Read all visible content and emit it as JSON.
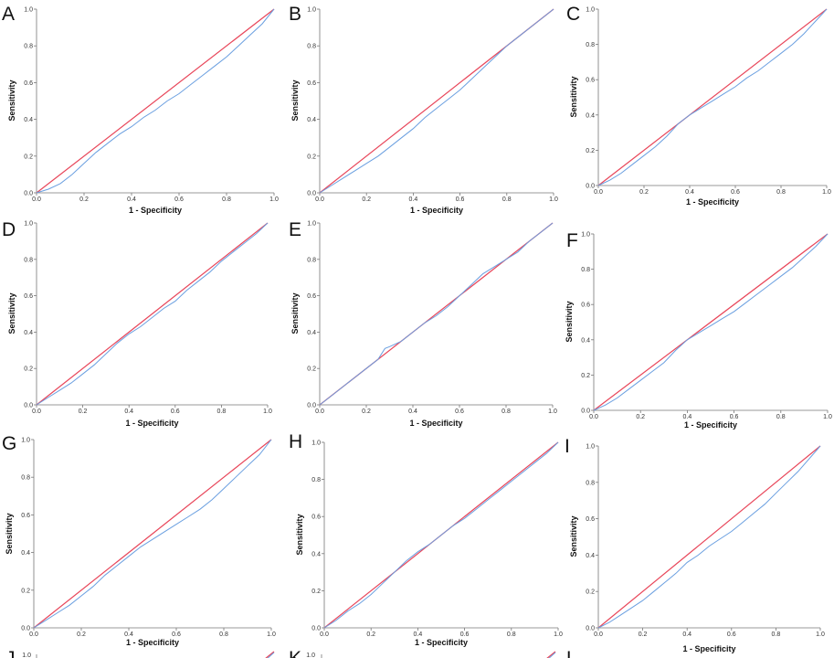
{
  "colors": {
    "reference_line": "#e8465a",
    "roc_curve": "#6a9fe0",
    "axis": "#777777"
  },
  "chart_data": [
    {
      "type": "line",
      "panel": "A",
      "xlabel": "1 - Specificity",
      "ylabel": "Sensitivity",
      "xlim": [
        0,
        1
      ],
      "ylim": [
        0,
        1
      ],
      "xticks": [
        "0.0",
        "0.2",
        "0.4",
        "0.6",
        "0.8",
        "1.0"
      ],
      "yticks": [
        "0.0",
        "0.2",
        "0.4",
        "0.6",
        "0.8",
        "1.0"
      ],
      "reference": [
        [
          0,
          0
        ],
        [
          1,
          1
        ]
      ],
      "roc": [
        [
          0,
          0
        ],
        [
          0.05,
          0.02
        ],
        [
          0.1,
          0.05
        ],
        [
          0.15,
          0.1
        ],
        [
          0.2,
          0.16
        ],
        [
          0.25,
          0.22
        ],
        [
          0.3,
          0.27
        ],
        [
          0.35,
          0.32
        ],
        [
          0.4,
          0.36
        ],
        [
          0.45,
          0.41
        ],
        [
          0.5,
          0.45
        ],
        [
          0.55,
          0.5
        ],
        [
          0.6,
          0.54
        ],
        [
          0.65,
          0.59
        ],
        [
          0.7,
          0.64
        ],
        [
          0.75,
          0.69
        ],
        [
          0.8,
          0.74
        ],
        [
          0.85,
          0.8
        ],
        [
          0.9,
          0.86
        ],
        [
          0.95,
          0.92
        ],
        [
          1,
          1
        ]
      ]
    },
    {
      "type": "line",
      "panel": "B",
      "xlabel": "1 - Specificity",
      "ylabel": "Sensitivity",
      "xlim": [
        0,
        1
      ],
      "ylim": [
        0,
        1
      ],
      "xticks": [
        "0.0",
        "0.2",
        "0.4",
        "0.6",
        "0.8",
        "1.0"
      ],
      "yticks": [
        "0.0",
        "0.2",
        "0.4",
        "0.6",
        "0.8",
        "1.0"
      ],
      "reference": [
        [
          0,
          0
        ],
        [
          1,
          1
        ]
      ],
      "roc": [
        [
          0,
          0
        ],
        [
          0.05,
          0.04
        ],
        [
          0.1,
          0.08
        ],
        [
          0.15,
          0.12
        ],
        [
          0.2,
          0.16
        ],
        [
          0.25,
          0.2
        ],
        [
          0.3,
          0.25
        ],
        [
          0.35,
          0.3
        ],
        [
          0.4,
          0.35
        ],
        [
          0.45,
          0.41
        ],
        [
          0.5,
          0.46
        ],
        [
          0.55,
          0.51
        ],
        [
          0.6,
          0.56
        ],
        [
          0.65,
          0.62
        ],
        [
          0.7,
          0.68
        ],
        [
          0.75,
          0.74
        ],
        [
          0.8,
          0.8
        ],
        [
          0.85,
          0.85
        ],
        [
          0.9,
          0.9
        ],
        [
          0.95,
          0.95
        ],
        [
          1,
          1
        ]
      ]
    },
    {
      "type": "line",
      "panel": "C",
      "xlabel": "1 - Specificity",
      "ylabel": "Sensitivity",
      "xlim": [
        0,
        1
      ],
      "ylim": [
        0,
        1
      ],
      "xticks": [
        "0.0",
        "0.2",
        "0.4",
        "0.6",
        "0.8",
        "1.0"
      ],
      "yticks": [
        "0.0",
        "0.2",
        "0.4",
        "0.6",
        "0.8",
        "1.0"
      ],
      "reference": [
        [
          0,
          0
        ],
        [
          1,
          1
        ]
      ],
      "roc": [
        [
          0,
          0
        ],
        [
          0.05,
          0.03
        ],
        [
          0.1,
          0.07
        ],
        [
          0.15,
          0.12
        ],
        [
          0.2,
          0.17
        ],
        [
          0.25,
          0.22
        ],
        [
          0.3,
          0.28
        ],
        [
          0.35,
          0.35
        ],
        [
          0.4,
          0.4
        ],
        [
          0.45,
          0.44
        ],
        [
          0.5,
          0.48
        ],
        [
          0.55,
          0.52
        ],
        [
          0.6,
          0.56
        ],
        [
          0.65,
          0.61
        ],
        [
          0.7,
          0.65
        ],
        [
          0.75,
          0.7
        ],
        [
          0.8,
          0.75
        ],
        [
          0.85,
          0.8
        ],
        [
          0.9,
          0.86
        ],
        [
          0.95,
          0.93
        ],
        [
          1,
          1
        ]
      ]
    },
    {
      "type": "line",
      "panel": "D",
      "xlabel": "1 - Specificity",
      "ylabel": "Sensitivity",
      "xlim": [
        0,
        1
      ],
      "ylim": [
        0,
        1
      ],
      "xticks": [
        "0.0",
        "0.2",
        "0.4",
        "0.6",
        "0.8",
        "1.0"
      ],
      "yticks": [
        "0.0",
        "0.2",
        "0.4",
        "0.6",
        "0.8",
        "1.0"
      ],
      "reference": [
        [
          0,
          0
        ],
        [
          1,
          1
        ]
      ],
      "roc": [
        [
          0,
          0
        ],
        [
          0.05,
          0.04
        ],
        [
          0.1,
          0.08
        ],
        [
          0.15,
          0.12
        ],
        [
          0.2,
          0.17
        ],
        [
          0.25,
          0.22
        ],
        [
          0.3,
          0.28
        ],
        [
          0.35,
          0.34
        ],
        [
          0.4,
          0.39
        ],
        [
          0.45,
          0.43
        ],
        [
          0.5,
          0.48
        ],
        [
          0.55,
          0.53
        ],
        [
          0.6,
          0.57
        ],
        [
          0.65,
          0.63
        ],
        [
          0.7,
          0.68
        ],
        [
          0.75,
          0.73
        ],
        [
          0.8,
          0.79
        ],
        [
          0.85,
          0.84
        ],
        [
          0.9,
          0.89
        ],
        [
          0.95,
          0.94
        ],
        [
          1,
          1
        ]
      ]
    },
    {
      "type": "line",
      "panel": "E",
      "xlabel": "1 - Specificity",
      "ylabel": "Sensitivity",
      "xlim": [
        0,
        1
      ],
      "ylim": [
        0,
        1
      ],
      "xticks": [
        "0.0",
        "0.2",
        "0.4",
        "0.6",
        "0.8",
        "1.0"
      ],
      "yticks": [
        "0.0",
        "0.2",
        "0.4",
        "0.6",
        "0.8",
        "1.0"
      ],
      "reference": [
        [
          0,
          0
        ],
        [
          1,
          1
        ]
      ],
      "roc": [
        [
          0,
          0
        ],
        [
          0.05,
          0.05
        ],
        [
          0.1,
          0.1
        ],
        [
          0.15,
          0.15
        ],
        [
          0.2,
          0.2
        ],
        [
          0.25,
          0.25
        ],
        [
          0.28,
          0.31
        ],
        [
          0.3,
          0.32
        ],
        [
          0.35,
          0.35
        ],
        [
          0.4,
          0.4
        ],
        [
          0.45,
          0.45
        ],
        [
          0.5,
          0.49
        ],
        [
          0.55,
          0.54
        ],
        [
          0.6,
          0.6
        ],
        [
          0.65,
          0.66
        ],
        [
          0.7,
          0.72
        ],
        [
          0.75,
          0.76
        ],
        [
          0.8,
          0.8
        ],
        [
          0.85,
          0.84
        ],
        [
          0.9,
          0.9
        ],
        [
          0.95,
          0.95
        ],
        [
          1,
          1
        ]
      ]
    },
    {
      "type": "line",
      "panel": "F",
      "xlabel": "1 - Specificity",
      "ylabel": "Sensitivity",
      "xlim": [
        0,
        1
      ],
      "ylim": [
        0,
        1
      ],
      "xticks": [
        "0.0",
        "0.2",
        "0.4",
        "0.6",
        "0.8",
        "1.0"
      ],
      "yticks": [
        "0.0",
        "0.2",
        "0.4",
        "0.6",
        "0.8",
        "1.0"
      ],
      "reference": [
        [
          0,
          0
        ],
        [
          1,
          1
        ]
      ],
      "roc": [
        [
          0,
          0
        ],
        [
          0.05,
          0.03
        ],
        [
          0.1,
          0.07
        ],
        [
          0.15,
          0.12
        ],
        [
          0.2,
          0.17
        ],
        [
          0.25,
          0.22
        ],
        [
          0.3,
          0.27
        ],
        [
          0.35,
          0.34
        ],
        [
          0.4,
          0.4
        ],
        [
          0.45,
          0.44
        ],
        [
          0.5,
          0.48
        ],
        [
          0.55,
          0.52
        ],
        [
          0.6,
          0.56
        ],
        [
          0.65,
          0.61
        ],
        [
          0.7,
          0.66
        ],
        [
          0.75,
          0.71
        ],
        [
          0.8,
          0.76
        ],
        [
          0.85,
          0.81
        ],
        [
          0.9,
          0.87
        ],
        [
          0.95,
          0.93
        ],
        [
          1,
          1
        ]
      ]
    },
    {
      "type": "line",
      "panel": "G",
      "xlabel": "1 - Specificity",
      "ylabel": "Sensitivity",
      "xlim": [
        0,
        1
      ],
      "ylim": [
        0,
        1
      ],
      "xticks": [
        "0.0",
        "0.2",
        "0.4",
        "0.6",
        "0.8",
        "1.0"
      ],
      "yticks": [
        "0.0",
        "0.2",
        "0.4",
        "0.6",
        "0.8",
        "1.0"
      ],
      "reference": [
        [
          0,
          0
        ],
        [
          1,
          1
        ]
      ],
      "roc": [
        [
          0,
          0
        ],
        [
          0.05,
          0.04
        ],
        [
          0.1,
          0.08
        ],
        [
          0.15,
          0.12
        ],
        [
          0.2,
          0.17
        ],
        [
          0.25,
          0.22
        ],
        [
          0.3,
          0.28
        ],
        [
          0.35,
          0.33
        ],
        [
          0.4,
          0.38
        ],
        [
          0.45,
          0.43
        ],
        [
          0.5,
          0.47
        ],
        [
          0.55,
          0.51
        ],
        [
          0.6,
          0.55
        ],
        [
          0.65,
          0.59
        ],
        [
          0.7,
          0.63
        ],
        [
          0.75,
          0.68
        ],
        [
          0.8,
          0.74
        ],
        [
          0.85,
          0.8
        ],
        [
          0.9,
          0.86
        ],
        [
          0.95,
          0.92
        ],
        [
          1,
          1
        ]
      ]
    },
    {
      "type": "line",
      "panel": "H",
      "xlabel": "1 - Specificity",
      "ylabel": "Sensitivity",
      "xlim": [
        0,
        1
      ],
      "ylim": [
        0,
        1
      ],
      "xticks": [
        "0.0",
        "0.2",
        "0.4",
        "0.6",
        "0.8",
        "1.0"
      ],
      "yticks": [
        "0.0",
        "0.2",
        "0.4",
        "0.6",
        "0.8",
        "1.0"
      ],
      "reference": [
        [
          0,
          0
        ],
        [
          1,
          1
        ]
      ],
      "roc": [
        [
          0,
          0
        ],
        [
          0.05,
          0.04
        ],
        [
          0.1,
          0.09
        ],
        [
          0.15,
          0.13
        ],
        [
          0.2,
          0.18
        ],
        [
          0.25,
          0.24
        ],
        [
          0.3,
          0.3
        ],
        [
          0.35,
          0.36
        ],
        [
          0.4,
          0.41
        ],
        [
          0.45,
          0.45
        ],
        [
          0.5,
          0.5
        ],
        [
          0.55,
          0.55
        ],
        [
          0.6,
          0.59
        ],
        [
          0.65,
          0.64
        ],
        [
          0.7,
          0.69
        ],
        [
          0.75,
          0.74
        ],
        [
          0.8,
          0.79
        ],
        [
          0.85,
          0.84
        ],
        [
          0.9,
          0.89
        ],
        [
          0.95,
          0.94
        ],
        [
          1,
          1
        ]
      ]
    },
    {
      "type": "line",
      "panel": "I",
      "xlabel": "1 - Specificity",
      "ylabel": "Sensitivity",
      "xlim": [
        0,
        1
      ],
      "ylim": [
        0,
        1
      ],
      "xticks": [
        "0.0",
        "0.2",
        "0.4",
        "0.6",
        "0.8",
        "1.0"
      ],
      "yticks": [
        "0.0",
        "0.2",
        "0.4",
        "0.6",
        "0.8",
        "1.0"
      ],
      "reference": [
        [
          0,
          0
        ],
        [
          1,
          1
        ]
      ],
      "roc": [
        [
          0,
          0
        ],
        [
          0.05,
          0.03
        ],
        [
          0.1,
          0.07
        ],
        [
          0.15,
          0.11
        ],
        [
          0.2,
          0.15
        ],
        [
          0.25,
          0.2
        ],
        [
          0.3,
          0.25
        ],
        [
          0.35,
          0.3
        ],
        [
          0.4,
          0.36
        ],
        [
          0.45,
          0.4
        ],
        [
          0.5,
          0.45
        ],
        [
          0.55,
          0.49
        ],
        [
          0.6,
          0.53
        ],
        [
          0.65,
          0.58
        ],
        [
          0.7,
          0.63
        ],
        [
          0.75,
          0.68
        ],
        [
          0.8,
          0.74
        ],
        [
          0.85,
          0.8
        ],
        [
          0.9,
          0.86
        ],
        [
          0.95,
          0.93
        ],
        [
          1,
          1
        ]
      ]
    }
  ],
  "partial_panels": [
    {
      "letter": "J",
      "tick": "1.0"
    },
    {
      "letter": "K",
      "tick": "1.0"
    },
    {
      "letter": "L"
    }
  ]
}
